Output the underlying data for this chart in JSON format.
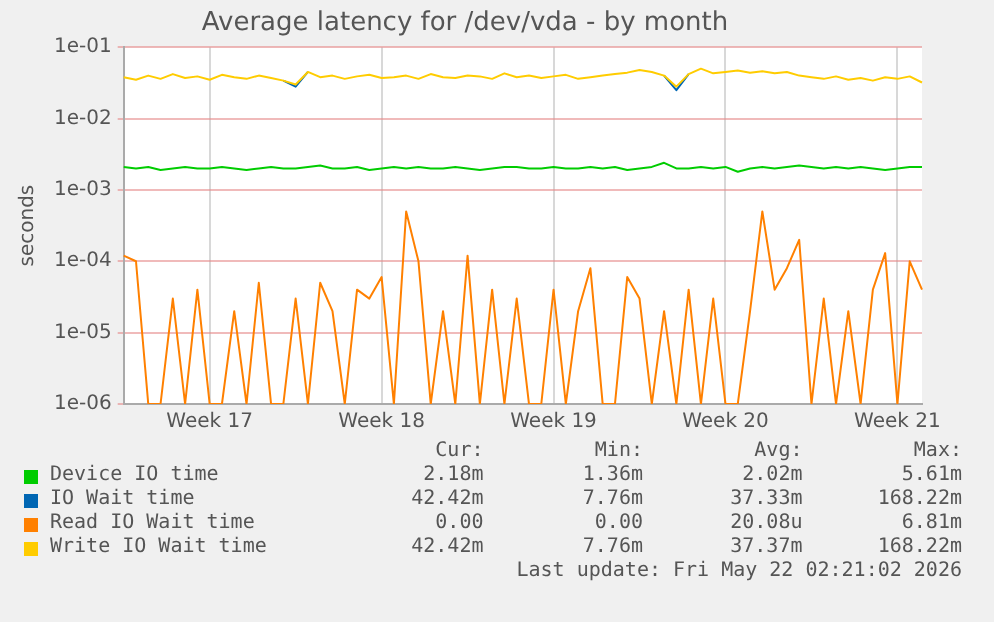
{
  "chart_data": {
    "type": "line",
    "title": "Average latency for /dev/vda - by month",
    "ylabel": "seconds",
    "categories": [
      null,
      null,
      null,
      null,
      null,
      null,
      null,
      "Week 17",
      null,
      null,
      null,
      null,
      null,
      null,
      null,
      null,
      null,
      null,
      null,
      null,
      null,
      "Week 18",
      null,
      null,
      null,
      null,
      null,
      null,
      null,
      null,
      null,
      null,
      null,
      null,
      null,
      "Week 19",
      null,
      null,
      null,
      null,
      null,
      null,
      null,
      null,
      null,
      null,
      null,
      null,
      null,
      "Week 20",
      null,
      null,
      null,
      null,
      null,
      null,
      null,
      null,
      null,
      null,
      null,
      null,
      null,
      "Week 21",
      null,
      null
    ],
    "ylim": [
      1e-06,
      0.1
    ],
    "yticks": [
      {
        "value": 1e-06,
        "label": "1e-06"
      },
      {
        "value": 1e-05,
        "label": "1e-05"
      },
      {
        "value": 0.0001,
        "label": "1e-04"
      },
      {
        "value": 0.001,
        "label": "1e-03"
      },
      {
        "value": 0.01,
        "label": "1e-02"
      },
      {
        "value": 0.1,
        "label": "1e-01"
      }
    ],
    "log": "y",
    "grid": true,
    "legend": "bottom",
    "marker": "none",
    "line_style": "solid",
    "series": [
      {
        "name": "Device IO time",
        "color": "#00cc00",
        "values": [
          0.0021,
          0.002,
          0.0021,
          0.0019,
          0.002,
          0.0021,
          0.002,
          0.002,
          0.0021,
          0.002,
          0.0019,
          0.002,
          0.0021,
          0.002,
          0.002,
          0.0021,
          0.0022,
          0.002,
          0.002,
          0.0021,
          0.0019,
          0.002,
          0.0021,
          0.002,
          0.0021,
          0.002,
          0.002,
          0.0021,
          0.002,
          0.0019,
          0.002,
          0.0021,
          0.0021,
          0.002,
          0.002,
          0.0021,
          0.002,
          0.002,
          0.0021,
          0.002,
          0.0021,
          0.0019,
          0.002,
          0.0021,
          0.0024,
          0.002,
          0.002,
          0.0021,
          0.002,
          0.0021,
          0.0018,
          0.002,
          0.0021,
          0.002,
          0.0021,
          0.0022,
          0.0021,
          0.002,
          0.0021,
          0.002,
          0.0021,
          0.002,
          0.0019,
          0.002,
          0.0021,
          0.0021
        ]
      },
      {
        "name": "IO Wait time",
        "color": "#0066b3",
        "values": [
          null,
          null,
          null,
          null,
          null,
          null,
          null,
          null,
          null,
          null,
          null,
          null,
          null,
          0.034,
          0.028,
          0.045,
          null,
          null,
          null,
          null,
          null,
          null,
          null,
          null,
          null,
          null,
          null,
          null,
          null,
          null,
          null,
          null,
          null,
          null,
          null,
          null,
          null,
          null,
          null,
          null,
          null,
          null,
          null,
          null,
          0.04,
          0.025,
          0.042,
          null,
          null,
          null,
          null,
          null,
          null,
          null,
          null,
          null,
          null,
          null,
          null,
          null,
          null,
          null,
          null,
          null,
          null,
          null
        ]
      },
      {
        "name": "Read IO Wait time",
        "color": "#ff8000",
        "values": [
          0.00012,
          0.0001,
          1e-06,
          1e-06,
          3e-05,
          1e-06,
          4e-05,
          1e-06,
          1e-06,
          2e-05,
          1e-06,
          5e-05,
          1e-06,
          1e-06,
          3e-05,
          1e-06,
          5e-05,
          2e-05,
          1e-06,
          4e-05,
          3e-05,
          6e-05,
          1e-06,
          0.0005,
          0.0001,
          1e-06,
          2e-05,
          1e-06,
          0.00012,
          1e-06,
          4e-05,
          1e-06,
          3e-05,
          1e-06,
          1e-06,
          4e-05,
          1e-06,
          2e-05,
          8e-05,
          1e-06,
          1e-06,
          6e-05,
          3e-05,
          1e-06,
          2e-05,
          1e-06,
          4e-05,
          1e-06,
          3e-05,
          1e-06,
          1e-06,
          2e-05,
          0.0005,
          4e-05,
          8e-05,
          0.0002,
          1e-06,
          3e-05,
          1e-06,
          2e-05,
          1e-06,
          4e-05,
          0.00013,
          1e-06,
          0.0001,
          4e-05
        ]
      },
      {
        "name": "Write IO Wait time",
        "color": "#ffcc00",
        "values": [
          0.038,
          0.035,
          0.04,
          0.036,
          0.042,
          0.037,
          0.039,
          0.035,
          0.041,
          0.038,
          0.036,
          0.04,
          0.037,
          0.034,
          0.03,
          0.045,
          0.038,
          0.04,
          0.036,
          0.039,
          0.041,
          0.037,
          0.038,
          0.04,
          0.036,
          0.042,
          0.038,
          0.037,
          0.04,
          0.039,
          0.036,
          0.043,
          0.038,
          0.04,
          0.037,
          0.039,
          0.041,
          0.036,
          0.038,
          0.04,
          0.042,
          0.044,
          0.048,
          0.045,
          0.04,
          0.028,
          0.042,
          0.05,
          0.043,
          0.045,
          0.047,
          0.044,
          0.046,
          0.043,
          0.045,
          0.04,
          0.038,
          0.036,
          0.039,
          0.035,
          0.037,
          0.034,
          0.038,
          0.036,
          0.039,
          0.032
        ]
      }
    ],
    "annotations": [
      "Cur:",
      "Min:",
      "Avg:",
      "Max:",
      "2.18m",
      "1.36m",
      "2.02m",
      "5.61m",
      "42.42m",
      "7.76m",
      "37.33m",
      "168.22m",
      "0.00",
      "0.00",
      "20.08u",
      "6.81m",
      "42.42m",
      "7.76m",
      "37.37m",
      "168.22m",
      "Last update: Fri May 22 02:21:02 2026"
    ]
  }
}
